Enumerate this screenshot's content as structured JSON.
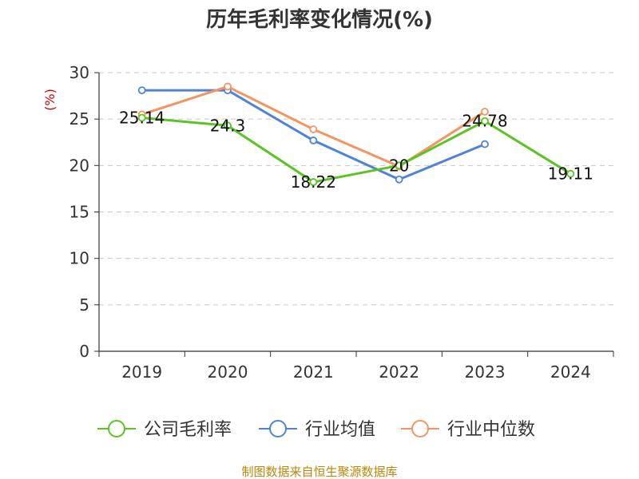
{
  "chart_data": {
    "type": "line",
    "title": "历年毛利率变化情况(%)",
    "ylabel": "(%)",
    "categories": [
      "2019",
      "2020",
      "2021",
      "2022",
      "2023",
      "2024"
    ],
    "ylim": [
      0,
      30
    ],
    "yticks": [
      "0",
      "5",
      "10",
      "15",
      "20",
      "25",
      "30"
    ],
    "grid": true,
    "legend_position": "bottom",
    "series": [
      {
        "name": "公司毛利率",
        "color": "#5bc424",
        "values": [
          25.14,
          24.3,
          18.22,
          20,
          24.78,
          19.11
        ],
        "labels": [
          "25.14",
          "24.3",
          "18.22",
          "20",
          "24.78",
          "19.11"
        ]
      },
      {
        "name": "行业均值",
        "color": "#4f82d8",
        "values": [
          28.1,
          28.1,
          22.7,
          18.5,
          22.3,
          null
        ]
      },
      {
        "name": "行业中位数",
        "color": "#f39461",
        "values": [
          25.5,
          28.5,
          23.9,
          19.9,
          25.8,
          null
        ]
      }
    ],
    "source": "制图数据来自恒生聚源数据库"
  }
}
